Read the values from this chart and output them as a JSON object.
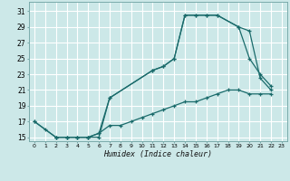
{
  "xlabel": "Humidex (Indice chaleur)",
  "bg_color": "#cce8e8",
  "grid_color": "#ffffff",
  "line_color": "#1a6b6b",
  "xlim": [
    -0.5,
    23.5
  ],
  "ylim": [
    14.5,
    32.2
  ],
  "xticks": [
    0,
    1,
    2,
    3,
    4,
    5,
    6,
    7,
    8,
    9,
    10,
    11,
    12,
    13,
    14,
    15,
    16,
    17,
    18,
    19,
    20,
    21,
    22,
    23
  ],
  "yticks": [
    15,
    17,
    19,
    21,
    23,
    25,
    27,
    29,
    31
  ],
  "curve1_x": [
    0,
    1,
    2,
    3,
    4,
    5,
    6,
    7,
    11,
    12,
    13,
    14,
    15,
    16,
    17,
    19,
    20,
    21,
    22
  ],
  "curve1_y": [
    17,
    16,
    15,
    15,
    15,
    15,
    15,
    20,
    23.5,
    24,
    25,
    30.5,
    30.5,
    30.5,
    30.5,
    29,
    28.5,
    22.5,
    21
  ],
  "curve2_x": [
    2,
    3,
    4,
    5,
    6,
    7,
    11,
    12,
    13,
    14,
    15,
    16,
    17,
    19,
    20,
    21,
    22
  ],
  "curve2_y": [
    15,
    15,
    15,
    15,
    15.5,
    20,
    23.5,
    24,
    25,
    30.5,
    30.5,
    30.5,
    30.5,
    29,
    25,
    23,
    21.5
  ],
  "curve3_x": [
    0,
    2,
    3,
    4,
    5,
    6,
    7,
    8,
    9,
    10,
    11,
    12,
    13,
    14,
    15,
    16,
    17,
    18,
    19,
    20,
    21,
    22
  ],
  "curve3_y": [
    17,
    15,
    15,
    15,
    15,
    15.5,
    16.5,
    16.5,
    17,
    17.5,
    18,
    18.5,
    19,
    19.5,
    19.5,
    20,
    20.5,
    21,
    21,
    20.5,
    20.5,
    20.5
  ]
}
